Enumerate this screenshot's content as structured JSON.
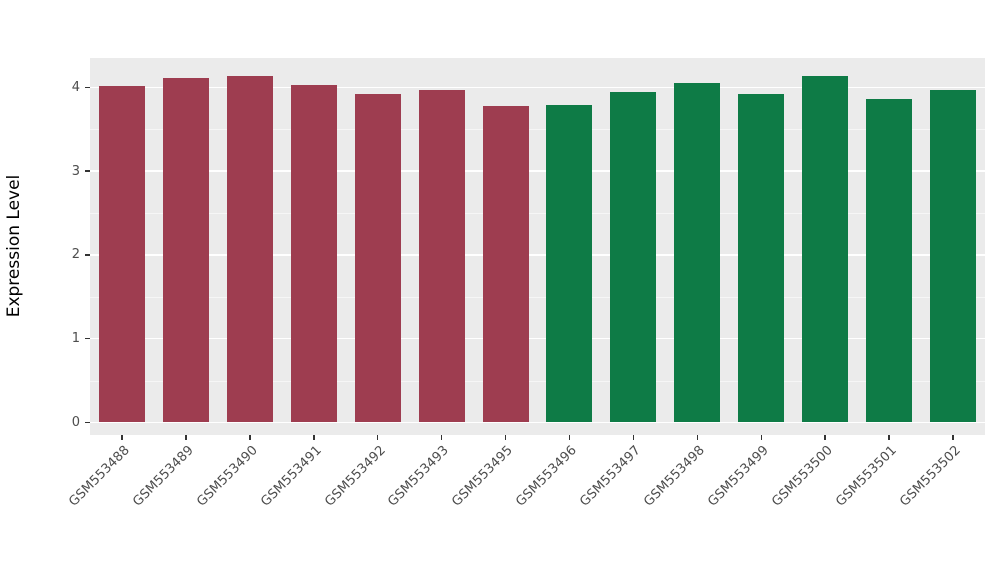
{
  "chart_data": {
    "type": "bar",
    "title": "",
    "xlabel": "",
    "ylabel": "Expression Level",
    "categories": [
      "GSM553488",
      "GSM553489",
      "GSM553490",
      "GSM553491",
      "GSM553492",
      "GSM553493",
      "GSM553495",
      "GSM553496",
      "GSM553497",
      "GSM553498",
      "GSM553499",
      "GSM553500",
      "GSM553501",
      "GSM553502"
    ],
    "values": [
      4.02,
      4.11,
      4.14,
      4.03,
      3.92,
      3.97,
      3.78,
      3.79,
      3.94,
      4.05,
      3.92,
      4.13,
      3.86,
      3.97
    ],
    "group_index": [
      0,
      0,
      0,
      0,
      0,
      0,
      0,
      1,
      1,
      1,
      1,
      1,
      1,
      1
    ],
    "group_colors": [
      "#9E3D50",
      "#0E7B46"
    ],
    "yticks": [
      0,
      1,
      2,
      3,
      4
    ],
    "minor_yticks": [
      0.5,
      1.5,
      2.5,
      3.5
    ],
    "ylim": [
      0,
      4.35
    ],
    "grid": "on",
    "legend": "none",
    "panel_background": "#EBEBEB"
  }
}
